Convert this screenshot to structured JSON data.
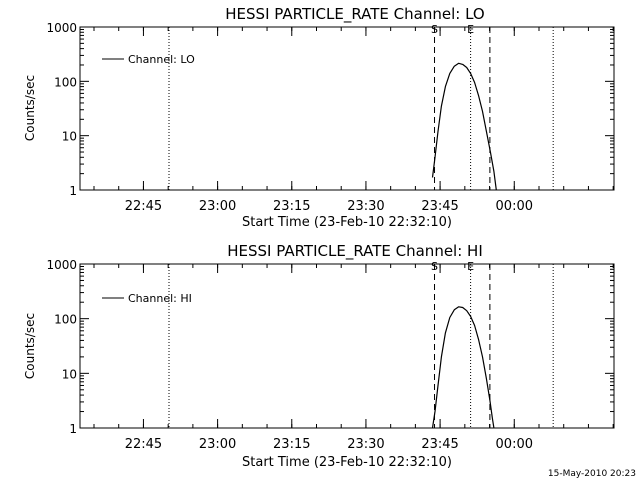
{
  "footer_timestamp": "15-May-2010 20:23",
  "chart_data": [
    {
      "type": "line",
      "title": "HESSI PARTICLE_RATE Channel: LO",
      "xlabel": "Start Time (23-Feb-10 22:32:10)",
      "ylabel": "Counts/sec",
      "y_scale": "log",
      "ylim": [
        1,
        1000
      ],
      "y_ticks": [
        {
          "value": 1,
          "label": "1"
        },
        {
          "value": 10,
          "label": "10"
        },
        {
          "value": 100,
          "label": "100"
        },
        {
          "value": 1000,
          "label": "1000"
        }
      ],
      "x_unit": "minutes after 22:32:10",
      "xlim": [
        0,
        108
      ],
      "x_ticks": [
        {
          "value": 12.83,
          "label": "22:45"
        },
        {
          "value": 27.83,
          "label": "23:00"
        },
        {
          "value": 42.83,
          "label": "23:15"
        },
        {
          "value": 57.83,
          "label": "23:30"
        },
        {
          "value": 72.83,
          "label": "23:45"
        },
        {
          "value": 87.83,
          "label": "00:00"
        }
      ],
      "legend": {
        "label": "Channel: LO",
        "position": "top-left"
      },
      "markers": [
        {
          "style": "dotted",
          "x": 18.0
        },
        {
          "style": "dashed",
          "x": 71.7,
          "label": "S"
        },
        {
          "style": "dotted",
          "x": 79.0,
          "label": "E"
        },
        {
          "style": "dashed",
          "x": 82.9
        },
        {
          "style": "dotted",
          "x": 95.7
        }
      ],
      "series": [
        {
          "points": [
            [
              71.3,
              1.7
            ],
            [
              71.8,
              4
            ],
            [
              72.4,
              12
            ],
            [
              73.1,
              35
            ],
            [
              73.9,
              80
            ],
            [
              74.8,
              140
            ],
            [
              75.7,
              190
            ],
            [
              76.6,
              215
            ],
            [
              77.4,
              205
            ],
            [
              78.2,
              180
            ],
            [
              79.0,
              140
            ],
            [
              79.8,
              95
            ],
            [
              80.6,
              55
            ],
            [
              81.4,
              28
            ],
            [
              82.2,
              12
            ],
            [
              83.0,
              5
            ],
            [
              83.7,
              2.2
            ],
            [
              84.2,
              1
            ]
          ]
        }
      ]
    },
    {
      "type": "line",
      "title": "HESSI PARTICLE_RATE Channel: HI",
      "xlabel": "Start Time (23-Feb-10 22:32:10)",
      "ylabel": "Counts/sec",
      "y_scale": "log",
      "ylim": [
        1,
        1000
      ],
      "y_ticks": [
        {
          "value": 1,
          "label": "1"
        },
        {
          "value": 10,
          "label": "10"
        },
        {
          "value": 100,
          "label": "100"
        },
        {
          "value": 1000,
          "label": "1000"
        }
      ],
      "x_unit": "minutes after 22:32:10",
      "xlim": [
        0,
        108
      ],
      "x_ticks": [
        {
          "value": 12.83,
          "label": "22:45"
        },
        {
          "value": 27.83,
          "label": "23:00"
        },
        {
          "value": 42.83,
          "label": "23:15"
        },
        {
          "value": 57.83,
          "label": "23:30"
        },
        {
          "value": 72.83,
          "label": "23:45"
        },
        {
          "value": 87.83,
          "label": "00:00"
        }
      ],
      "legend": {
        "label": "Channel: HI",
        "position": "top-left"
      },
      "markers": [
        {
          "style": "dotted",
          "x": 18.0
        },
        {
          "style": "dashed",
          "x": 71.7,
          "label": "S"
        },
        {
          "style": "dotted",
          "x": 79.0,
          "label": "E"
        },
        {
          "style": "dashed",
          "x": 82.9
        },
        {
          "style": "dotted",
          "x": 95.7
        }
      ],
      "series": [
        {
          "points": [
            [
              71.3,
              1
            ],
            [
              71.8,
              2
            ],
            [
              72.4,
              6
            ],
            [
              73.1,
              20
            ],
            [
              73.9,
              55
            ],
            [
              74.8,
              105
            ],
            [
              75.7,
              145
            ],
            [
              76.6,
              165
            ],
            [
              77.4,
              160
            ],
            [
              78.2,
              140
            ],
            [
              79.0,
              110
            ],
            [
              79.8,
              75
            ],
            [
              80.6,
              42
            ],
            [
              81.4,
              20
            ],
            [
              82.2,
              8
            ],
            [
              82.9,
              3.2
            ],
            [
              83.4,
              1.5
            ],
            [
              83.7,
              1
            ]
          ]
        }
      ]
    }
  ]
}
